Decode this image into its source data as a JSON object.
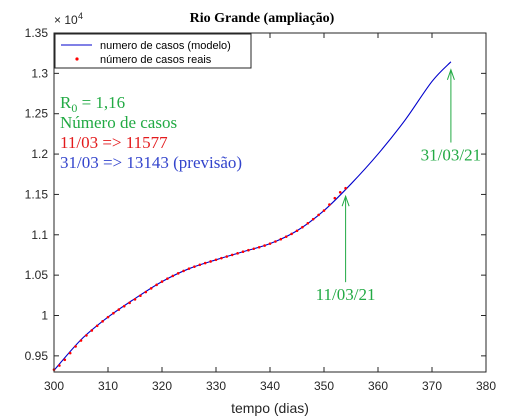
{
  "chart_data": {
    "type": "line",
    "title": "Rio Grande (ampliação)",
    "xlabel": "tempo (dias)",
    "ylabel": "",
    "y_exponent_label": "× 10",
    "y_exponent_power": "4",
    "xlim": [
      300,
      380
    ],
    "ylim": [
      9300,
      13500
    ],
    "x_ticks": [
      300,
      310,
      320,
      330,
      340,
      350,
      360,
      370,
      380
    ],
    "y_ticks": [
      9500,
      10000,
      10500,
      11000,
      11500,
      12000,
      12500,
      13000,
      13500
    ],
    "y_tick_labels": [
      "0.95",
      "1",
      "1.05",
      "1.1",
      "1.15",
      "1.2",
      "1.25",
      "1.3",
      "1.35"
    ],
    "grid": false,
    "legend_position": "top-left",
    "series": [
      {
        "name": "numero de casos (modelo)",
        "color": "#0000cc",
        "style": "line",
        "x": [
          300,
          305,
          310,
          315,
          320,
          325,
          330,
          335,
          340,
          345,
          350,
          355,
          360,
          365,
          370,
          373.5
        ],
        "y": [
          9320,
          9700,
          9980,
          10210,
          10420,
          10580,
          10690,
          10790,
          10890,
          11050,
          11300,
          11630,
          12000,
          12420,
          12900,
          13143
        ]
      },
      {
        "name": "número de casos reais",
        "color": "#ff0000",
        "style": "dots",
        "x": [
          300,
          305,
          310,
          315,
          320,
          325,
          330,
          335,
          340,
          345,
          350,
          354
        ],
        "y": [
          9330,
          9690,
          9980,
          10200,
          10420,
          10580,
          10690,
          10790,
          10890,
          11050,
          11300,
          11577
        ]
      }
    ],
    "annotations": [
      {
        "text": "11/03/21",
        "color": "#22aa44",
        "x": 354,
        "y": 11577,
        "text_x": 354,
        "text_y": 10190
      },
      {
        "text": "31/03/21",
        "color": "#22aa44",
        "x": 373.5,
        "y": 13143,
        "text_x": 373.5,
        "text_y": 11920
      }
    ]
  },
  "info": {
    "r0_prefix": "R",
    "r0_sub": "0",
    "r0_value": " = 1,16",
    "cases_heading": "Número de casos",
    "real_line": "11/03 => 11577",
    "forecast_line": "31/03 => 13143 (previsão)",
    "green": "#22aa44",
    "red": "#e31a1c",
    "blue": "#3344cc"
  }
}
